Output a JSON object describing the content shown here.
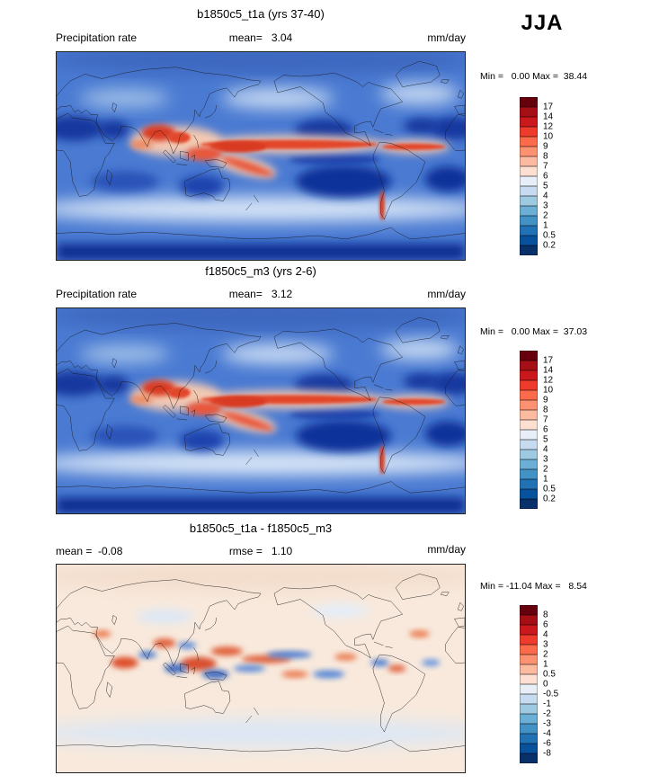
{
  "season_label": "JJA",
  "panels": [
    {
      "title": "b1850c5_t1a (yrs 37-40)",
      "stats_left": "Precipitation rate",
      "stats_center": "mean=   3.04",
      "units": "mm/day",
      "minmax": "Min =   0.00 Max =  38.44",
      "colorbar": {
        "labels": [
          "17",
          "14",
          "12",
          "10",
          "9",
          "8",
          "7",
          "6",
          "5",
          "4",
          "3",
          "2",
          "1",
          "0.5",
          "0.2"
        ],
        "colors": [
          "#67000d",
          "#a50f15",
          "#cb181d",
          "#ef3b2c",
          "#fb6a4a",
          "#fc9272",
          "#fcbba1",
          "#fee0d2",
          "#e8eef8",
          "#c6dbef",
          "#9ecae1",
          "#6baed6",
          "#4292c6",
          "#2171b5",
          "#08519c",
          "#08306b"
        ]
      }
    },
    {
      "title": "f1850c5_m3 (yrs 2-6)",
      "stats_left": "Precipitation rate",
      "stats_center": "mean=   3.12",
      "units": "mm/day",
      "minmax": "Min =   0.00 Max =  37.03",
      "colorbar": {
        "labels": [
          "17",
          "14",
          "12",
          "10",
          "9",
          "8",
          "7",
          "6",
          "5",
          "4",
          "3",
          "2",
          "1",
          "0.5",
          "0.2"
        ],
        "colors": [
          "#67000d",
          "#a50f15",
          "#cb181d",
          "#ef3b2c",
          "#fb6a4a",
          "#fc9272",
          "#fcbba1",
          "#fee0d2",
          "#e8eef8",
          "#c6dbef",
          "#9ecae1",
          "#6baed6",
          "#4292c6",
          "#2171b5",
          "#08519c",
          "#08306b"
        ]
      }
    },
    {
      "title": "b1850c5_t1a - f1850c5_m3",
      "stats_left": "mean =  -0.08",
      "stats_center": "rmse =   1.10",
      "units": "mm/day",
      "minmax": "Min = -11.04 Max =   8.54",
      "colorbar": {
        "labels": [
          "8",
          "6",
          "4",
          "3",
          "2",
          "1",
          "0.5",
          "0",
          "-0.5",
          "-1",
          "-2",
          "-3",
          "-4",
          "-6",
          "-8"
        ],
        "colors": [
          "#67000d",
          "#a50f15",
          "#cb181d",
          "#ef3b2c",
          "#fb6a4a",
          "#fc9272",
          "#fcbba1",
          "#fee0d2",
          "#e8eef8",
          "#c6dbef",
          "#9ecae1",
          "#6baed6",
          "#4292c6",
          "#2171b5",
          "#08519c",
          "#08306b"
        ]
      }
    }
  ],
  "chart_data": [
    {
      "type": "heatmap",
      "title": "b1850c5_t1a (yrs 37-40)",
      "variable": "Precipitation rate",
      "season": "JJA",
      "units": "mm/day",
      "projection": "global latitude-longitude map, Pacific-centered",
      "mean": 3.04,
      "min": 0.0,
      "max": 38.44,
      "contour_levels": [
        0.2,
        0.5,
        1,
        2,
        3,
        4,
        5,
        6,
        7,
        8,
        9,
        10,
        12,
        14,
        17
      ],
      "palette": "dark blue (low precip) through white to dark red (high precip)",
      "legend_position": "right vertical colorbar"
    },
    {
      "type": "heatmap",
      "title": "f1850c5_m3 (yrs 2-6)",
      "variable": "Precipitation rate",
      "season": "JJA",
      "units": "mm/day",
      "projection": "global latitude-longitude map, Pacific-centered",
      "mean": 3.12,
      "min": 0.0,
      "max": 37.03,
      "contour_levels": [
        0.2,
        0.5,
        1,
        2,
        3,
        4,
        5,
        6,
        7,
        8,
        9,
        10,
        12,
        14,
        17
      ],
      "palette": "dark blue (low precip) through white to dark red (high precip)",
      "legend_position": "right vertical colorbar"
    },
    {
      "type": "heatmap",
      "title": "b1850c5_t1a - f1850c5_m3",
      "variable": "Precipitation rate difference",
      "season": "JJA",
      "units": "mm/day",
      "projection": "global latitude-longitude map, Pacific-centered",
      "mean": -0.08,
      "rmse": 1.1,
      "min": -11.04,
      "max": 8.54,
      "contour_levels": [
        -8,
        -6,
        -4,
        -3,
        -2,
        -1,
        -0.5,
        0,
        0.5,
        1,
        2,
        3,
        4,
        6,
        8
      ],
      "palette": "blue (negative) through pale cream to red (positive)",
      "legend_position": "right vertical colorbar"
    }
  ]
}
